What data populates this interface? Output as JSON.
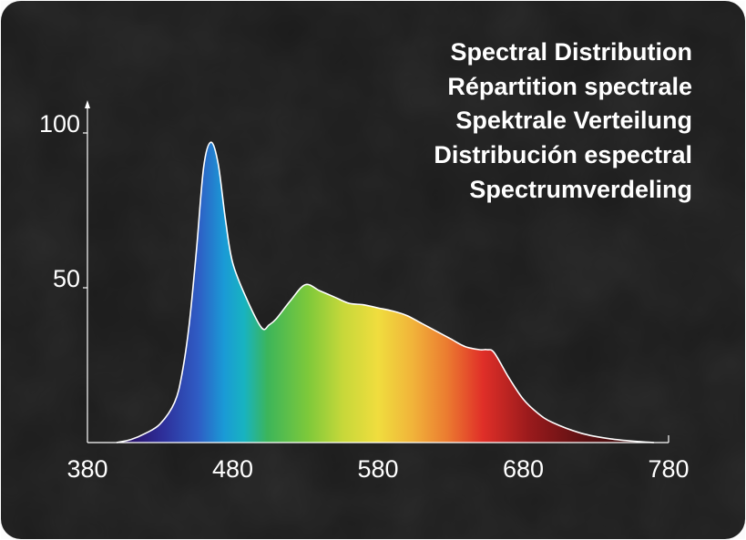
{
  "colors": {
    "background": "#1b1b1b",
    "axis": "#ffffff",
    "text": "#ffffff",
    "outline": "#ffffff"
  },
  "chart_data": {
    "type": "area",
    "title_lines": [
      "Spectral Distribution",
      "Répartition spectrale",
      "Spektrale Verteilung",
      "Distribución espectral",
      "Spectrumverdeling"
    ],
    "xlabel": "",
    "ylabel": "",
    "xlim": [
      380,
      780
    ],
    "ylim": [
      0,
      100
    ],
    "x_ticks": [
      380,
      480,
      580,
      680,
      780
    ],
    "x_tick_labels": [
      "380",
      "480",
      "580",
      "680",
      "780"
    ],
    "y_ticks": [
      50,
      100
    ],
    "y_tick_labels": [
      "50",
      "100"
    ],
    "grid": false,
    "legend": "none",
    "fill": "visible-spectrum gradient by wavelength",
    "x": [
      400,
      410,
      420,
      430,
      440,
      445,
      450,
      455,
      460,
      465,
      470,
      475,
      480,
      490,
      500,
      505,
      510,
      520,
      530,
      540,
      550,
      560,
      570,
      580,
      590,
      600,
      610,
      620,
      630,
      640,
      650,
      655,
      660,
      670,
      680,
      690,
      700,
      720,
      740,
      760,
      770
    ],
    "y": [
      0,
      1,
      3,
      6,
      13,
      22,
      38,
      62,
      89,
      97,
      90,
      72,
      58,
      46,
      37,
      38,
      40,
      46,
      51,
      49,
      47,
      45,
      44.5,
      43.5,
      42.5,
      41,
      38.5,
      36,
      33.5,
      31,
      30,
      30,
      29,
      21,
      14,
      9.5,
      6.5,
      3,
      1.2,
      0.3,
      0
    ]
  }
}
